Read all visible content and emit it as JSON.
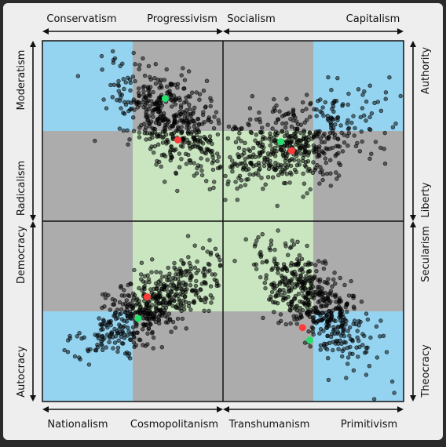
{
  "chart_data": {
    "type": "scatter",
    "title": "",
    "colors": {
      "background": "#2b2b2b",
      "frame": "#eeeeee",
      "zone_blue": "#95d4f0",
      "zone_gray": "#acacac",
      "zone_green": "#c9e6c1",
      "points": "#000000",
      "marker_red": "#ff3b3b",
      "marker_green": "#22e06b"
    },
    "axis_labels": {
      "top": [
        "Conservatism",
        "Progressivism",
        "Socialism",
        "Capitalism"
      ],
      "bottom": [
        "Nationalism",
        "Cosmopolitanism",
        "Transhumanism",
        "Primitivism"
      ],
      "left": [
        "Moderatism",
        "Radicalism",
        "Democracy",
        "Autocracy"
      ],
      "right": [
        "Authority",
        "Liberty",
        "Secularism",
        "Theocracy"
      ]
    },
    "grid": {
      "columns": 5,
      "rows": 5,
      "range": [
        0,
        1
      ]
    },
    "quadrants": [
      {
        "id": "top-left",
        "x_axis": [
          "Conservatism",
          "Progressivism"
        ],
        "y_axis": [
          "Radicalism",
          "Moderatism"
        ],
        "cluster": {
          "center": [
            0.72,
            0.55
          ],
          "spread": [
            0.18,
            0.16
          ],
          "trend": -0.55,
          "count": 520
        },
        "markers": {
          "red": [
            0.75,
            0.45
          ],
          "green": [
            0.68,
            0.68
          ]
        }
      },
      {
        "id": "top-right",
        "x_axis": [
          "Socialism",
          "Capitalism"
        ],
        "y_axis": [
          "Liberty",
          "Authority"
        ],
        "cluster": {
          "center": [
            0.38,
            0.42
          ],
          "spread": [
            0.24,
            0.14
          ],
          "trend": 0.55,
          "count": 540
        },
        "markers": {
          "red": [
            0.38,
            0.39
          ],
          "green": [
            0.32,
            0.44
          ]
        }
      },
      {
        "id": "bottom-left",
        "x_axis": [
          "Nationalism",
          "Cosmopolitanism"
        ],
        "y_axis": [
          "Autocracy",
          "Democracy"
        ],
        "cluster": {
          "center": [
            0.64,
            0.55
          ],
          "spread": [
            0.2,
            0.14
          ],
          "trend": 0.75,
          "count": 560
        },
        "markers": {
          "red": [
            0.58,
            0.58
          ],
          "green": [
            0.53,
            0.46
          ]
        }
      },
      {
        "id": "bottom-right",
        "x_axis": [
          "Transhumanism",
          "Primitivism"
        ],
        "y_axis": [
          "Theocracy",
          "Secularism"
        ],
        "cluster": {
          "center": [
            0.5,
            0.56
          ],
          "spread": [
            0.16,
            0.16
          ],
          "trend": -0.7,
          "count": 520
        },
        "markers": {
          "red": [
            0.44,
            0.41
          ],
          "green": [
            0.48,
            0.34
          ]
        }
      }
    ]
  }
}
